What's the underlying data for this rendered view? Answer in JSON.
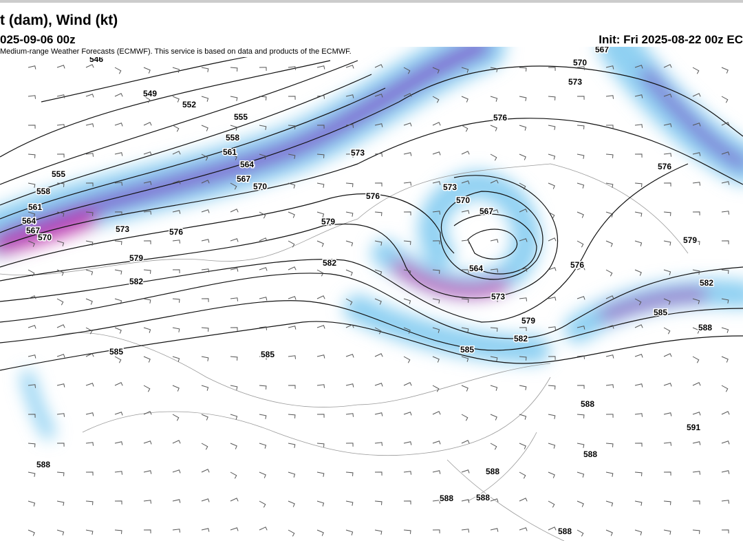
{
  "header": {
    "title": "t (dam), Wind (kt)",
    "valid": "025-09-06 00z",
    "init": "Init: Fri 2025-08-22 00z EC"
  },
  "credit": "Medium-range Weather Forecasts (ECMWF). This service is based on data and products of the ECMWF.",
  "contour_labels": [
    546,
    549,
    552,
    555,
    558,
    561,
    564,
    567,
    570,
    573,
    576,
    573,
    570,
    567,
    555,
    558,
    561,
    564,
    567,
    570,
    573,
    576,
    579,
    576,
    573,
    570,
    567,
    564,
    573,
    576,
    579,
    582,
    582,
    579,
    582,
    585,
    585,
    585,
    576,
    579,
    582,
    585,
    588,
    588,
    591,
    588,
    588,
    588,
    588,
    588,
    588
  ]
}
